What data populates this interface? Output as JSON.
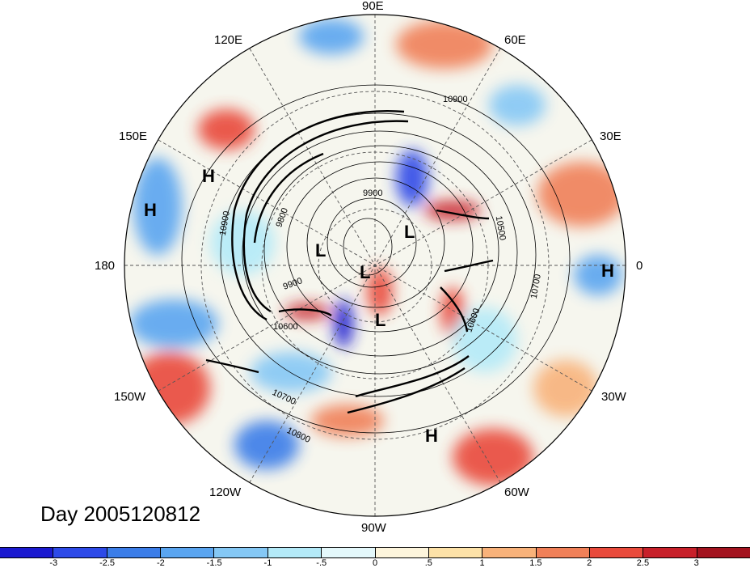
{
  "map": {
    "title_date": "Day 2005120812",
    "longitude_labels": {
      "lon_90e": "90E",
      "lon_120e": "120E",
      "lon_60e": "60E",
      "lon_150e": "150E",
      "lon_30e": "30E",
      "lon_180": "180",
      "lon_0": "0",
      "lon_150w": "150W",
      "lon_30w": "30W",
      "lon_120w": "120W",
      "lon_60w": "60W",
      "lon_90w": "90W"
    },
    "contour_labels": {
      "c1": "10900",
      "c2": "9900",
      "c3": "10500",
      "c4": "9800",
      "c5": "10900",
      "c6": "10700",
      "c7": "9900",
      "c8": "10600",
      "c9": "10600",
      "c10": "10700",
      "c11": "10800"
    },
    "pressure_centers": {
      "h1": "H",
      "h2": "H",
      "h3": "H",
      "h4": "H",
      "l1": "L",
      "l2": "L",
      "l3": "L",
      "l4": "L"
    },
    "colorbar": {
      "colors": [
        "#1b1ad0",
        "#2d4ae8",
        "#3b7de8",
        "#5aa5f0",
        "#85c8f5",
        "#b4eaf8",
        "#e4f8fb",
        "#fdf5dc",
        "#fde2a8",
        "#f8b27a",
        "#f08058",
        "#e94a3b",
        "#c8202a",
        "#a3131f"
      ],
      "tick_labels": [
        "-3",
        "-2.5",
        "-2",
        "-1.5",
        "-1",
        "-.5",
        "0",
        ".5",
        "1",
        "1.5",
        "2",
        "2.5",
        "3"
      ]
    }
  }
}
